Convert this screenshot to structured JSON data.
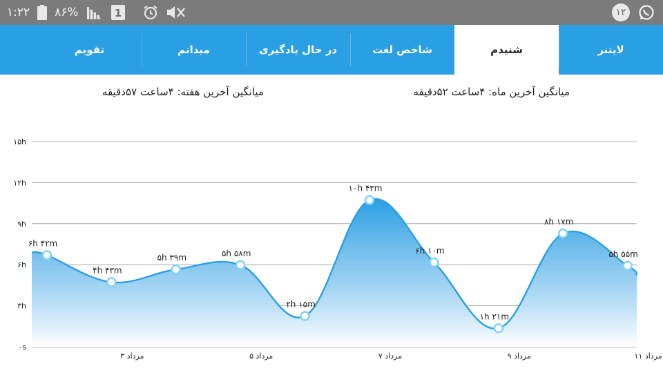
{
  "status_bar": {
    "time": "۱:۲۲",
    "battery": "۸۶%",
    "sim": "1",
    "notification_count": "۱۲",
    "icons": [
      "battery-icon",
      "signal-icon",
      "sim-icon",
      "alarm-icon",
      "mute-icon",
      "notification-count-badge",
      "whatsapp-icon"
    ]
  },
  "tabs": [
    {
      "label": "لایتنر",
      "active": false
    },
    {
      "label": "شنیدم",
      "active": true
    },
    {
      "label": "شاخص لغت",
      "active": false
    },
    {
      "label": "در حال یادگیری",
      "active": false
    },
    {
      "label": "میدانم",
      "active": false
    },
    {
      "label": "تقویم",
      "active": false
    }
  ],
  "averages": {
    "month": "میانگین آخرین ماه: ۴ساعت ۵۲دقیقه",
    "week": "میانگین آخرین هفته: ۴ساعت ۵۷دقیقه"
  },
  "colors": {
    "status_bar": "#7b7b7b",
    "tab_bar": "#2a9fe3",
    "line": "#2a9fe3",
    "area_top": "#2a9fe3",
    "area_bottom": "#ffffff",
    "grid": "#9a9a9a"
  },
  "chart_data": {
    "type": "area",
    "y_ticks": [
      "۰s",
      "۳h",
      "۶h",
      "۹h",
      "۱۲h",
      "۱۵h"
    ],
    "ylim": [
      0,
      15
    ],
    "y_unit": "hours",
    "x_tick_labels": [
      {
        "index": 2,
        "label": "۳ مرداد"
      },
      {
        "index": 4,
        "label": "۵ مرداد"
      },
      {
        "index": 6,
        "label": "۷ مرداد"
      },
      {
        "index": 8,
        "label": "۹ مرداد"
      },
      {
        "index": 10,
        "label": "۱۱ مرداد"
      }
    ],
    "points": [
      {
        "value": 6.7,
        "label": "۶h ۴۲m"
      },
      {
        "value": 4.72,
        "label": "۴h ۴۳m"
      },
      {
        "value": 5.65,
        "label": "۵h ۳۹m"
      },
      {
        "value": 5.97,
        "label": "۵h ۵۸m"
      },
      {
        "value": 2.25,
        "label": "۲h ۱۵m"
      },
      {
        "value": 10.72,
        "label": "۱۰h ۴۳m"
      },
      {
        "value": 6.17,
        "label": "۶h ۱۰m"
      },
      {
        "value": 1.35,
        "label": "۱h ۲۱m"
      },
      {
        "value": 8.28,
        "label": "۸h ۱۷m"
      },
      {
        "value": 5.92,
        "label": "۵h ۵۵m"
      }
    ],
    "grid": true,
    "legend": "none"
  }
}
